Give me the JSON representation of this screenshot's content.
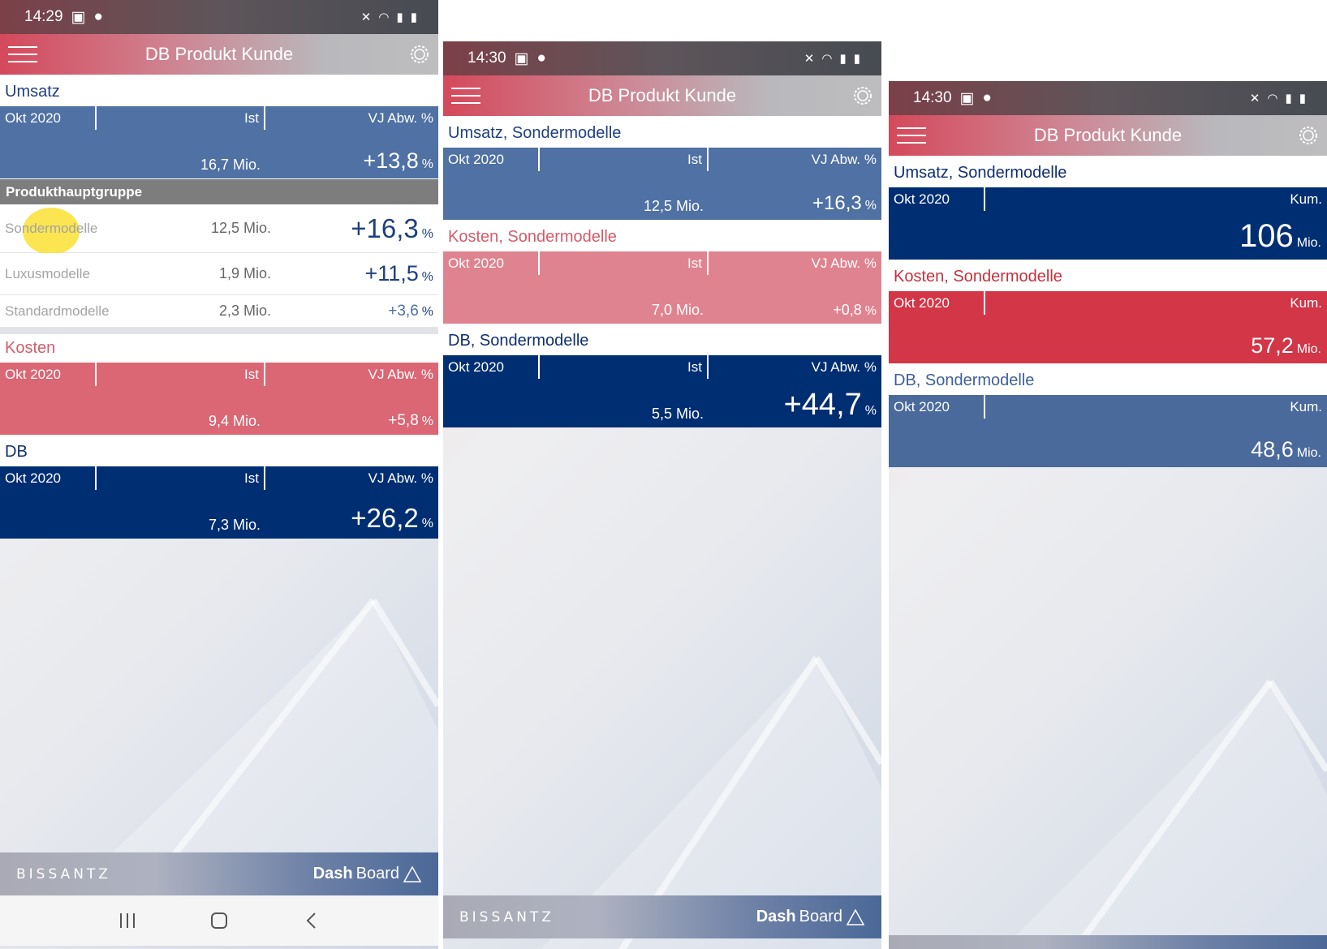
{
  "status": {
    "time1": "14:29",
    "time2": "14:30",
    "time3": "14:30"
  },
  "app": {
    "title": "DB Produkt Kunde"
  },
  "screen1": {
    "umsatz": {
      "title": "Umsatz",
      "period": "Okt 2020",
      "col_ist": "Ist",
      "col_vj": "VJ Abw. %",
      "ist_value": "16,7 Mio.",
      "vj_value": "+13,8",
      "vj_unit": "%"
    },
    "group": {
      "header": "Produkthauptgruppe",
      "rows": [
        {
          "name": "Sondermodelle",
          "value": "12,5 Mio.",
          "pct": "+16,3",
          "unit": "%"
        },
        {
          "name": "Luxusmodelle",
          "value": "1,9 Mio.",
          "pct": "+11,5",
          "unit": "%"
        },
        {
          "name": "Standardmodelle",
          "value": "2,3 Mio.",
          "pct": "+3,6",
          "unit": "%"
        }
      ]
    },
    "kosten": {
      "title": "Kosten",
      "period": "Okt 2020",
      "col_ist": "Ist",
      "col_vj": "VJ Abw. %",
      "ist_value": "9,4 Mio.",
      "vj_value": "+5,8",
      "vj_unit": "%"
    },
    "db": {
      "title": "DB",
      "period": "Okt 2020",
      "col_ist": "Ist",
      "col_vj": "VJ Abw. %",
      "ist_value": "7,3 Mio.",
      "vj_value": "+26,2",
      "vj_unit": "%"
    }
  },
  "screen2": {
    "umsatz": {
      "title": "Umsatz, Sondermodelle",
      "period": "Okt 2020",
      "col_ist": "Ist",
      "col_vj": "VJ Abw. %",
      "ist_value": "12,5 Mio.",
      "vj_value": "+16,3",
      "vj_unit": "%"
    },
    "kosten": {
      "title": "Kosten, Sondermodelle",
      "period": "Okt 2020",
      "col_ist": "Ist",
      "col_vj": "VJ Abw. %",
      "ist_value": "7,0 Mio.",
      "vj_value": "+0,8",
      "vj_unit": "%"
    },
    "db": {
      "title": "DB, Sondermodelle",
      "period": "Okt 2020",
      "col_ist": "Ist",
      "col_vj": "VJ Abw. %",
      "ist_value": "5,5 Mio.",
      "vj_value": "+44,7",
      "vj_unit": "%"
    }
  },
  "screen3": {
    "umsatz": {
      "title": "Umsatz, Sondermodelle",
      "period": "Okt 2020",
      "col_kum": "Kum.",
      "value": "106",
      "unit": "Mio."
    },
    "kosten": {
      "title": "Kosten, Sondermodelle",
      "period": "Okt 2020",
      "col_kum": "Kum.",
      "value": "57,2",
      "unit": "Mio."
    },
    "db": {
      "title": "DB, Sondermodelle",
      "period": "Okt 2020",
      "col_kum": "Kum.",
      "value": "48,6",
      "unit": "Mio."
    }
  },
  "footer": {
    "brand": "BISSANTZ",
    "product_bold": "Dash",
    "product_rest": "Board"
  },
  "colors": {
    "blue": "#4f71a3",
    "pink": "#db6674",
    "navy": "#002e72",
    "red": "#d23647",
    "slate": "#4b6a9c",
    "gray_header": "#7d7d7d"
  }
}
